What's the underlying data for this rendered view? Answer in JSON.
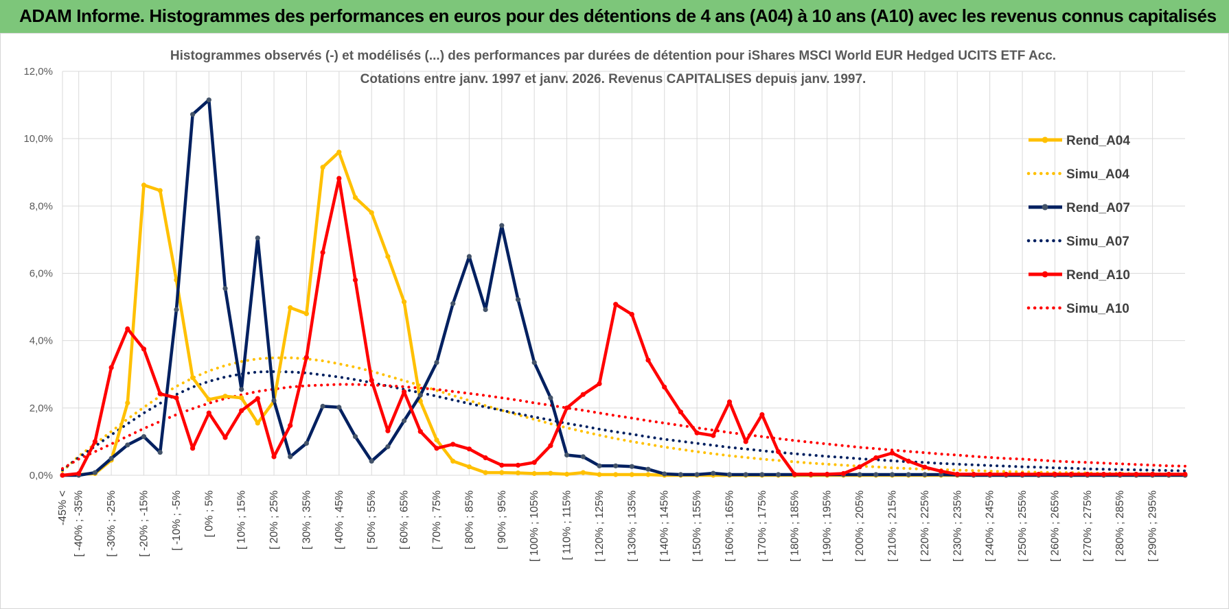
{
  "header": {
    "title": "ADAM Informe. Histogrammes des performances en euros pour des détentions de 4 ans (A04) à 10 ans (A10) avec les revenus connus capitalisés"
  },
  "colors": {
    "banner": "#7dc67a",
    "A04": "#ffc000",
    "A07": "#002060",
    "A10": "#ff0000",
    "grid": "#d9d9d9",
    "text": "#595959"
  },
  "chart_data": {
    "type": "line",
    "title": "Histogrammes observés (-) et modélisés (...) des performances par durées de détention pour iShares MSCI World EUR Hedged UCITS ETF Acc.",
    "subtitle": "Cotations entre janv. 1997 et janv. 2026. Revenus CAPITALISES depuis janv. 1997.",
    "xlabel": "",
    "ylabel": "",
    "ylim": [
      0,
      12
    ],
    "yticks": [
      "0,0%",
      "2,0%",
      "4,0%",
      "6,0%",
      "8,0%",
      "10,0%",
      "12,0%"
    ],
    "grid": true,
    "legend_position": "right",
    "x_labels": [
      "-45% <",
      "[ -40% ; -35%",
      "[ -30% ; -25%",
      "[ -20% ; -15%",
      "[ -10% ; -5%",
      "[ 0% ; 5%",
      "[ 10% ; 15%",
      "[ 20% ; 25%",
      "[ 30% ; 35%",
      "[ 40% ; 45%",
      "[ 50% ; 55%",
      "[ 60% ; 65%",
      "[ 70% ; 75%",
      "[ 80% ; 85%",
      "[ 90% ; 95%",
      "[ 100% ; 105%",
      "[ 110% ; 115%",
      "[ 120% ; 125%",
      "[ 130% ; 135%",
      "[ 140% ; 145%",
      "[ 150% ; 155%",
      "[ 160% ; 165%",
      "[ 170% ; 175%",
      "[ 180% ; 185%",
      "[ 190% ; 195%",
      "[ 200% ; 205%",
      "[ 210% ; 215%",
      "[ 220% ; 225%",
      "[ 230% ; 235%",
      "[ 240% ; 245%",
      "[ 250% ; 255%",
      "[ 260% ; 265%",
      "[ 270% ; 275%",
      "[ 280% ; 285%",
      "[ 290% ; 295%"
    ],
    "x_label_positions": [
      -45,
      -40,
      -30,
      -20,
      -10,
      0,
      10,
      20,
      30,
      40,
      50,
      60,
      70,
      80,
      90,
      100,
      110,
      120,
      130,
      140,
      150,
      160,
      170,
      180,
      190,
      200,
      210,
      220,
      230,
      240,
      250,
      260,
      270,
      280,
      290
    ],
    "x": [
      -45,
      -40,
      -35,
      -30,
      -25,
      -20,
      -15,
      -10,
      -5,
      0,
      5,
      10,
      15,
      20,
      25,
      30,
      35,
      40,
      45,
      50,
      55,
      60,
      65,
      70,
      75,
      80,
      85,
      90,
      95,
      100,
      105,
      110,
      115,
      120,
      125,
      130,
      135,
      140,
      145,
      150,
      155,
      160,
      165,
      170,
      175,
      180,
      185,
      190,
      195,
      200,
      205,
      210,
      215,
      220,
      225,
      230,
      235,
      240,
      245,
      250,
      255,
      260,
      265,
      270,
      275,
      280,
      285,
      290,
      295,
      300
    ],
    "series": [
      {
        "name": "Rend_A04",
        "style": "solid",
        "color": "#ffc000",
        "values": [
          0,
          0.02,
          0.05,
          0.45,
          2.15,
          8.62,
          8.46,
          5.8,
          2.9,
          2.25,
          2.35,
          2.3,
          1.55,
          2.2,
          4.98,
          4.8,
          9.15,
          9.6,
          8.25,
          7.8,
          6.5,
          5.15,
          2.2,
          1.05,
          0.42,
          0.25,
          0.08,
          0.08,
          0.07,
          0.05,
          0.06,
          0.03,
          0.08,
          0.02,
          0.02,
          0.02,
          0.02,
          0,
          0,
          0,
          0,
          0,
          0,
          0,
          0,
          0,
          0,
          0,
          0,
          0,
          0,
          0,
          0,
          0,
          0,
          0,
          0,
          0,
          0,
          0,
          0,
          0,
          0,
          0,
          0,
          0,
          0,
          0,
          0,
          0
        ]
      },
      {
        "name": "Simu_A04",
        "style": "dotted",
        "color": "#ffc000",
        "values": [
          0.12,
          0.57,
          0.93,
          1.3,
          1.67,
          2.02,
          2.35,
          2.64,
          2.89,
          3.1,
          3.26,
          3.38,
          3.46,
          3.49,
          3.49,
          3.46,
          3.4,
          3.31,
          3.21,
          3.09,
          2.95,
          2.81,
          2.67,
          2.52,
          2.37,
          2.22,
          2.07,
          1.93,
          1.79,
          1.66,
          1.53,
          1.41,
          1.3,
          1.19,
          1.09,
          1.0,
          0.92,
          0.84,
          0.77,
          0.7,
          0.64,
          0.58,
          0.53,
          0.48,
          0.44,
          0.4,
          0.36,
          0.33,
          0.3,
          0.27,
          0.25,
          0.22,
          0.2,
          0.18,
          0.17,
          0.15,
          0.14,
          0.12,
          0.11,
          0.1,
          0.09,
          0.08,
          0.08,
          0.07,
          0.06,
          0.06,
          0.05,
          0.05,
          0.04,
          0.04
        ]
      },
      {
        "name": "Rend_A07",
        "style": "solid",
        "color": "#002060",
        "values": [
          0,
          0,
          0.08,
          0.5,
          0.9,
          1.15,
          0.68,
          4.92,
          10.72,
          11.15,
          5.55,
          2.55,
          7.05,
          2.22,
          0.55,
          0.95,
          2.05,
          2.02,
          1.15,
          0.42,
          0.85,
          1.62,
          2.38,
          3.35,
          5.1,
          6.5,
          4.92,
          7.42,
          5.22,
          3.35,
          2.3,
          0.6,
          0.55,
          0.28,
          0.28,
          0.26,
          0.18,
          0.04,
          0.02,
          0.02,
          0.06,
          0.02,
          0.02,
          0.02,
          0.02,
          0.02,
          0.02,
          0.02,
          0.02,
          0.02,
          0.02,
          0.02,
          0.02,
          0.02,
          0.02,
          0.01,
          0,
          0,
          0,
          0,
          0,
          0,
          0,
          0,
          0,
          0,
          0,
          0,
          0,
          0
        ]
      },
      {
        "name": "Simu_A07",
        "style": "dotted",
        "color": "#002060",
        "values": [
          0.16,
          0.53,
          0.86,
          1.2,
          1.53,
          1.85,
          2.14,
          2.4,
          2.62,
          2.79,
          2.92,
          3.01,
          3.07,
          3.08,
          3.07,
          3.04,
          2.98,
          2.92,
          2.84,
          2.75,
          2.65,
          2.55,
          2.45,
          2.35,
          2.24,
          2.13,
          2.03,
          1.93,
          1.83,
          1.73,
          1.64,
          1.54,
          1.46,
          1.37,
          1.29,
          1.22,
          1.14,
          1.07,
          1.01,
          0.95,
          0.89,
          0.83,
          0.78,
          0.73,
          0.68,
          0.64,
          0.6,
          0.56,
          0.53,
          0.49,
          0.46,
          0.43,
          0.4,
          0.38,
          0.35,
          0.33,
          0.31,
          0.29,
          0.27,
          0.25,
          0.24,
          0.22,
          0.21,
          0.19,
          0.18,
          0.17,
          0.16,
          0.15,
          0.14,
          0.13
        ]
      },
      {
        "name": "Rend_A10",
        "style": "solid",
        "color": "#ff0000",
        "values": [
          0,
          0.05,
          1.0,
          3.2,
          4.35,
          3.75,
          2.42,
          2.3,
          0.8,
          1.85,
          1.12,
          1.92,
          2.28,
          0.55,
          1.48,
          3.5,
          6.62,
          8.82,
          5.8,
          2.82,
          1.32,
          2.48,
          1.3,
          0.8,
          0.92,
          0.78,
          0.52,
          0.3,
          0.3,
          0.38,
          0.88,
          2.0,
          2.4,
          2.72,
          5.08,
          4.78,
          3.42,
          2.62,
          1.88,
          1.26,
          1.18,
          2.18,
          1.0,
          1.8,
          0.7,
          0.03,
          0.03,
          0.03,
          0.05,
          0.25,
          0.52,
          0.66,
          0.42,
          0.24,
          0.12,
          0.03,
          0.03,
          0.03,
          0.03,
          0.03,
          0.03,
          0.03,
          0.03,
          0.03,
          0.03,
          0.03,
          0.03,
          0.03,
          0.03,
          0.03
        ]
      },
      {
        "name": "Simu_A10",
        "style": "dotted",
        "color": "#ff0000",
        "values": [
          0.2,
          0.48,
          0.7,
          0.93,
          1.16,
          1.39,
          1.6,
          1.8,
          1.98,
          2.14,
          2.28,
          2.39,
          2.49,
          2.56,
          2.62,
          2.66,
          2.68,
          2.7,
          2.7,
          2.68,
          2.66,
          2.63,
          2.59,
          2.55,
          2.49,
          2.43,
          2.37,
          2.3,
          2.23,
          2.15,
          2.08,
          2.0,
          1.93,
          1.85,
          1.77,
          1.7,
          1.62,
          1.55,
          1.48,
          1.41,
          1.34,
          1.27,
          1.21,
          1.15,
          1.09,
          1.03,
          0.98,
          0.93,
          0.88,
          0.83,
          0.79,
          0.75,
          0.71,
          0.67,
          0.63,
          0.6,
          0.56,
          0.53,
          0.5,
          0.48,
          0.45,
          0.42,
          0.4,
          0.38,
          0.36,
          0.34,
          0.32,
          0.3,
          0.28,
          0.27
        ]
      }
    ]
  }
}
